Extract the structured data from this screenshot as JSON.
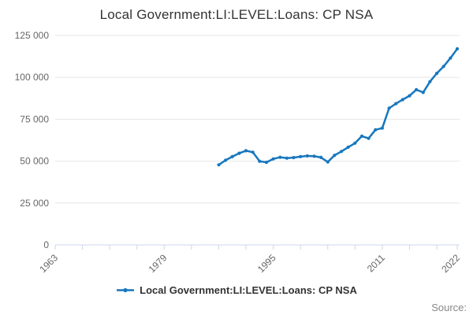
{
  "title": "Local Government:LI:LEVEL:Loans: CP NSA",
  "legend": {
    "label": "Local Government:LI:LEVEL:Loans: CP NSA"
  },
  "footer": {
    "source_label": "Source:"
  },
  "colors": {
    "line": "#1777be",
    "grid": "#e6e6e6",
    "axis": "#ccd6eb",
    "tick_label": "#666666",
    "title_text": "#333333",
    "legend_text": "#333333",
    "source_text": "#888888"
  },
  "chart_data": {
    "type": "line",
    "title": "Local Government:LI:LEVEL:Loans: CP NSA",
    "xlabel": "",
    "ylabel": "",
    "xlim": [
      1963,
      2022
    ],
    "ylim": [
      0,
      125000
    ],
    "grid": "horizontal",
    "legend_position": "bottom",
    "y_ticks": [
      0,
      25000,
      50000,
      75000,
      100000,
      125000
    ],
    "y_tick_labels": [
      "0",
      "25 000",
      "50 000",
      "75 000",
      "100 000",
      "125 000"
    ],
    "x_minor_tick_years": [
      1963,
      1967,
      1971,
      1975,
      1979,
      1983,
      1987,
      1991,
      1995,
      1999,
      2003,
      2007,
      2011,
      2015,
      2019,
      2022
    ],
    "x_labeled_years": [
      "1963",
      "1979",
      "1995",
      "2011",
      "2022"
    ],
    "x": [
      1987,
      1988,
      1989,
      1990,
      1991,
      1992,
      1993,
      1994,
      1995,
      1996,
      1997,
      1998,
      1999,
      2000,
      2001,
      2002,
      2003,
      2004,
      2005,
      2006,
      2007,
      2008,
      2009,
      2010,
      2011,
      2012,
      2013,
      2014,
      2015,
      2016,
      2017,
      2018,
      2019,
      2020,
      2021,
      2022
    ],
    "series": [
      {
        "name": "Local Government:LI:LEVEL:Loans: CP NSA",
        "values": [
          47800,
          50500,
          52700,
          54700,
          56200,
          55300,
          49900,
          49300,
          51300,
          52300,
          51800,
          52100,
          52700,
          53100,
          52900,
          52200,
          49500,
          53500,
          55800,
          58300,
          60700,
          64900,
          63600,
          68700,
          69700,
          81600,
          84300,
          86700,
          89000,
          92600,
          91000,
          97400,
          102400,
          106500,
          111500,
          117000
        ]
      }
    ]
  }
}
